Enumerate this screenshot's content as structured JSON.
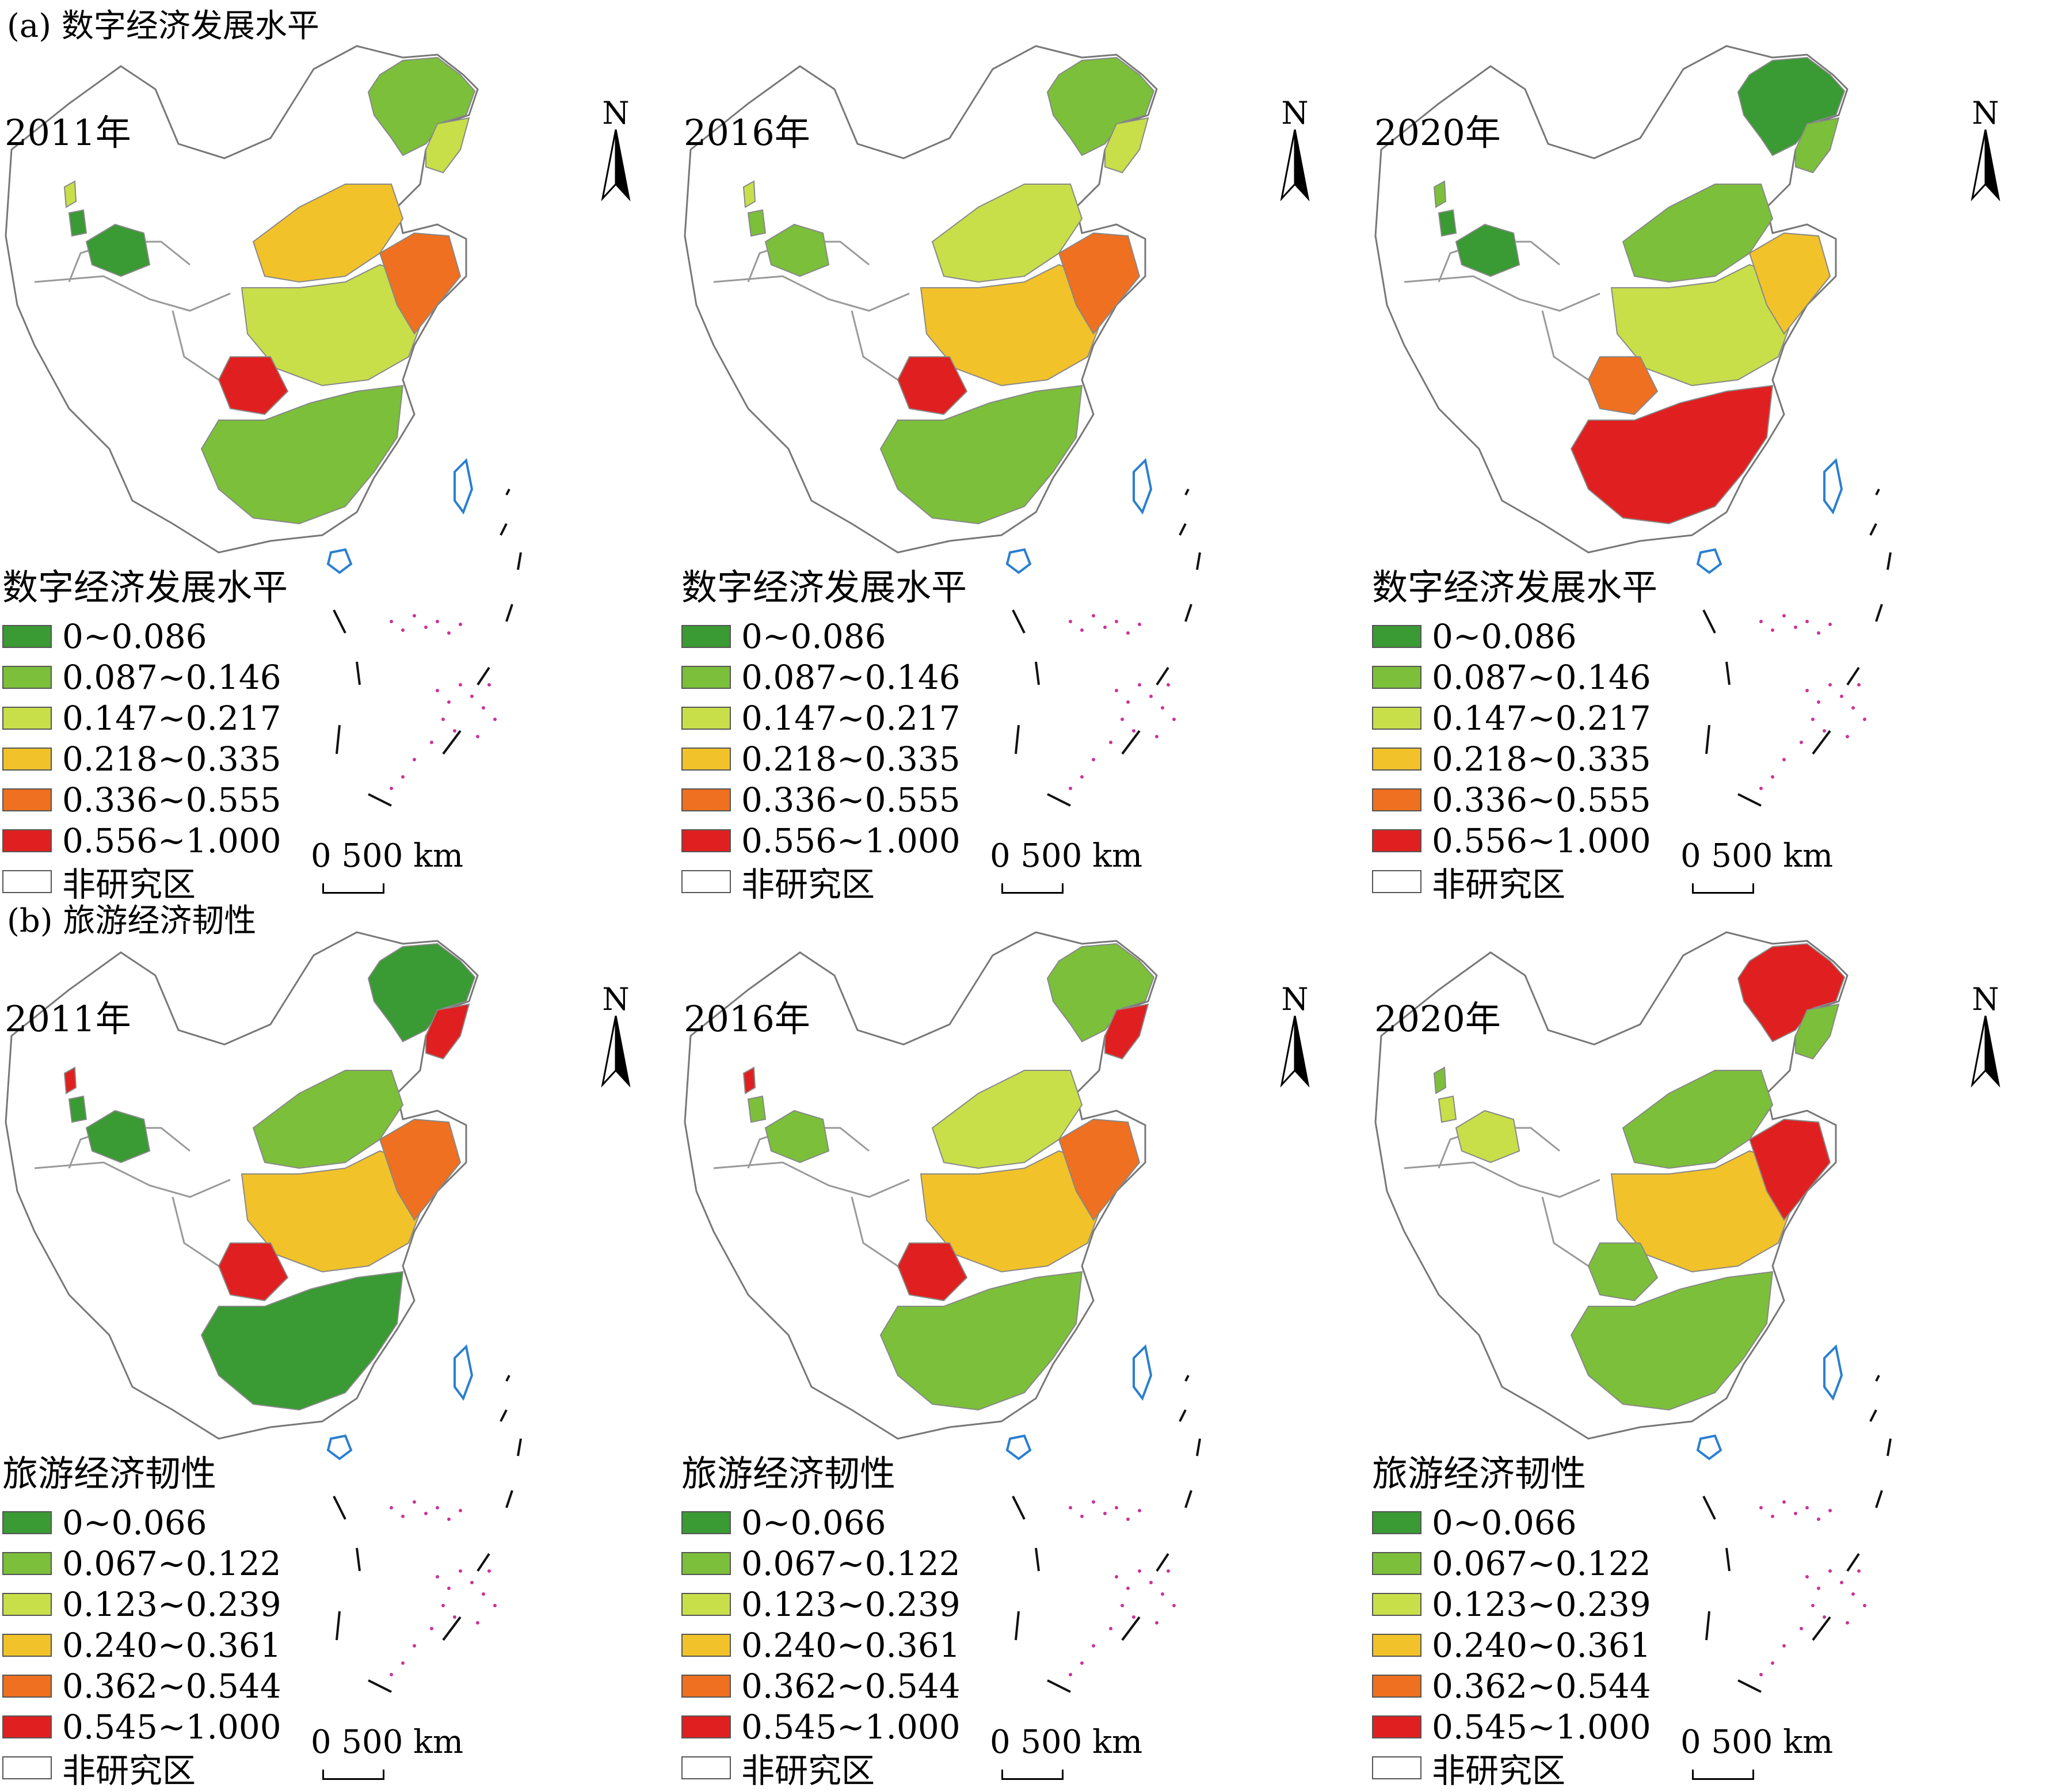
{
  "section_a": {
    "title": "(a) 数字经济发展水平",
    "legend_title": "数字经济发展水平",
    "legend": [
      {
        "label": "0~0.086",
        "color": "#3a9a34"
      },
      {
        "label": "0.087~0.146",
        "color": "#7cbf3a"
      },
      {
        "label": "0.147~0.217",
        "color": "#c8df4a"
      },
      {
        "label": "0.218~0.335",
        "color": "#f2c22a"
      },
      {
        "label": "0.336~0.555",
        "color": "#ee7020"
      },
      {
        "label": "0.556~1.000",
        "color": "#e02020"
      },
      {
        "label": "非研究区",
        "color": "#ffffff"
      }
    ],
    "panels": [
      {
        "year": "2011年"
      },
      {
        "year": "2016年"
      },
      {
        "year": "2020年"
      }
    ]
  },
  "section_b": {
    "title": "(b) 旅游经济韧性",
    "legend_title": "旅游经济韧性",
    "legend": [
      {
        "label": "0~0.066",
        "color": "#3a9a34"
      },
      {
        "label": "0.067~0.122",
        "color": "#7cbf3a"
      },
      {
        "label": "0.123~0.239",
        "color": "#c8df4a"
      },
      {
        "label": "0.240~0.361",
        "color": "#f2c22a"
      },
      {
        "label": "0.362~0.544",
        "color": "#ee7020"
      },
      {
        "label": "0.545~1.000",
        "color": "#e02020"
      },
      {
        "label": "非研究区",
        "color": "#ffffff"
      }
    ],
    "panels": [
      {
        "year": "2011年"
      },
      {
        "year": "2016年"
      },
      {
        "year": "2020年"
      }
    ]
  },
  "north_label": "N",
  "scale_label": "0   500 km",
  "colors": {
    "border": "#888888",
    "coast": "#2a7fd0",
    "island_dots": "#cc3399"
  },
  "palette_by_panel": {
    "a0": [
      "#7cbf3a",
      "#c8df4a",
      "#3a9a34",
      "#f2c22a",
      "#c8df4a",
      "#ee7020",
      "#e02020",
      "#7cbf3a"
    ],
    "a1": [
      "#7cbf3a",
      "#c8df4a",
      "#7cbf3a",
      "#c8df4a",
      "#f2c22a",
      "#ee7020",
      "#e02020",
      "#7cbf3a"
    ],
    "a2": [
      "#3a9a34",
      "#7cbf3a",
      "#3a9a34",
      "#7cbf3a",
      "#c8df4a",
      "#f2c22a",
      "#ee7020",
      "#e02020"
    ],
    "b0": [
      "#3a9a34",
      "#e02020",
      "#3a9a34",
      "#7cbf3a",
      "#f2c22a",
      "#ee7020",
      "#e02020",
      "#3a9a34"
    ],
    "b1": [
      "#7cbf3a",
      "#e02020",
      "#7cbf3a",
      "#c8df4a",
      "#f2c22a",
      "#ee7020",
      "#e02020",
      "#7cbf3a"
    ],
    "b2": [
      "#e02020",
      "#7cbf3a",
      "#c8df4a",
      "#7cbf3a",
      "#f2c22a",
      "#e02020",
      "#7cbf3a",
      "#7cbf3a"
    ]
  }
}
